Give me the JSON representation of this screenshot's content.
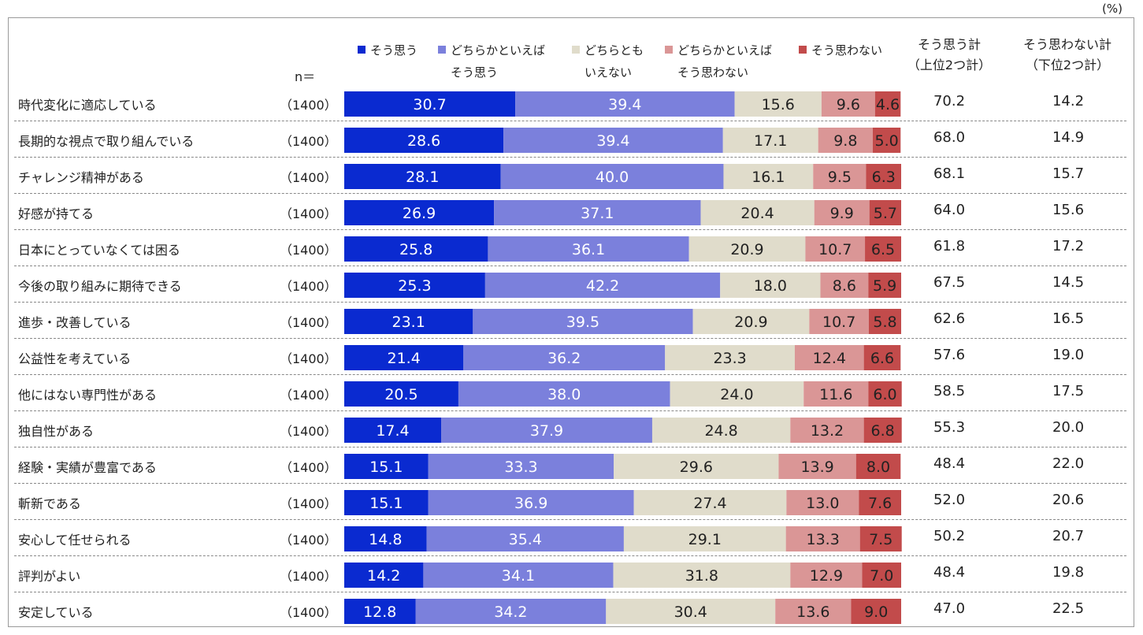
{
  "unit": "(%)",
  "n_header": "n＝",
  "colors": {
    "strongly_agree": "#0a2ad0",
    "somewhat_agree": "#7b80dc",
    "neutral": "#e0dccb",
    "somewhat_disagree": "#da9696",
    "strongly_disagree": "#c24b4b"
  },
  "legend": [
    {
      "key": "strongly_agree",
      "line1": "そう思う",
      "line2": ""
    },
    {
      "key": "somewhat_agree",
      "line1": "どちらかといえば",
      "line2": "そう思う"
    },
    {
      "key": "neutral",
      "line1": "どちらとも",
      "line2": "いえない"
    },
    {
      "key": "somewhat_disagree",
      "line1": "どちらかといえば",
      "line2": "そう思わない"
    },
    {
      "key": "strongly_disagree",
      "line1": "そう思わない",
      "line2": ""
    }
  ],
  "totals_headers": {
    "agree_line1": "そう思う計",
    "agree_line2": "（上位2つ計）",
    "disagree_line1": "そう思わない計",
    "disagree_line2": "（下位2つ計）"
  },
  "chart_data": {
    "type": "bar",
    "orientation": "horizontal-stacked-100",
    "unit": "%",
    "categories": [
      "時代変化に適応している",
      "長期的な視点で取り組んでいる",
      "チャレンジ精神がある",
      "好感が持てる",
      "日本にとっていなくては困る",
      "今後の取り組みに期待できる",
      "進歩・改善している",
      "公益性を考えている",
      "他にはない専門性がある",
      "独自性がある",
      "経験・実績が豊富である",
      "斬新である",
      "安心して任せられる",
      "評判がよい",
      "安定している"
    ],
    "n": [
      "（1400）",
      "（1400）",
      "（1400）",
      "（1400）",
      "（1400）",
      "（1400）",
      "（1400）",
      "（1400）",
      "（1400）",
      "（1400）",
      "（1400）",
      "（1400）",
      "（1400）",
      "（1400）",
      "（1400）"
    ],
    "series": [
      {
        "name": "そう思う",
        "values": [
          "30.7",
          "28.6",
          "28.1",
          "26.9",
          "25.8",
          "25.3",
          "23.1",
          "21.4",
          "20.5",
          "17.4",
          "15.1",
          "15.1",
          "14.8",
          "14.2",
          "12.8"
        ]
      },
      {
        "name": "どちらかといえばそう思う",
        "values": [
          "39.4",
          "39.4",
          "40.0",
          "37.1",
          "36.1",
          "42.2",
          "39.5",
          "36.2",
          "38.0",
          "37.9",
          "33.3",
          "36.9",
          "35.4",
          "34.1",
          "34.2"
        ]
      },
      {
        "name": "どちらともいえない",
        "values": [
          "15.6",
          "17.1",
          "16.1",
          "20.4",
          "20.9",
          "18.0",
          "20.9",
          "23.3",
          "24.0",
          "24.8",
          "29.6",
          "27.4",
          "29.1",
          "31.8",
          "30.4"
        ]
      },
      {
        "name": "どちらかといえばそう思わない",
        "values": [
          "9.6",
          "9.8",
          "9.5",
          "9.9",
          "10.7",
          "8.6",
          "10.7",
          "12.4",
          "11.6",
          "13.2",
          "13.9",
          "13.0",
          "13.3",
          "12.9",
          "13.6"
        ]
      },
      {
        "name": "そう思わない",
        "values": [
          "4.6",
          "5.0",
          "6.3",
          "5.7",
          "6.5",
          "5.9",
          "5.8",
          "6.6",
          "6.0",
          "6.8",
          "8.0",
          "7.6",
          "7.5",
          "7.0",
          "9.0"
        ]
      }
    ],
    "agree_total": [
      "70.2",
      "68.0",
      "68.1",
      "64.0",
      "61.8",
      "67.5",
      "62.6",
      "57.6",
      "58.5",
      "55.3",
      "48.4",
      "52.0",
      "50.2",
      "48.4",
      "47.0"
    ],
    "disagree_total": [
      "14.2",
      "14.9",
      "15.7",
      "15.6",
      "17.2",
      "14.5",
      "16.5",
      "19.0",
      "17.5",
      "20.0",
      "22.0",
      "20.6",
      "20.7",
      "19.8",
      "22.5"
    ],
    "xlim": [
      0,
      100
    ]
  }
}
